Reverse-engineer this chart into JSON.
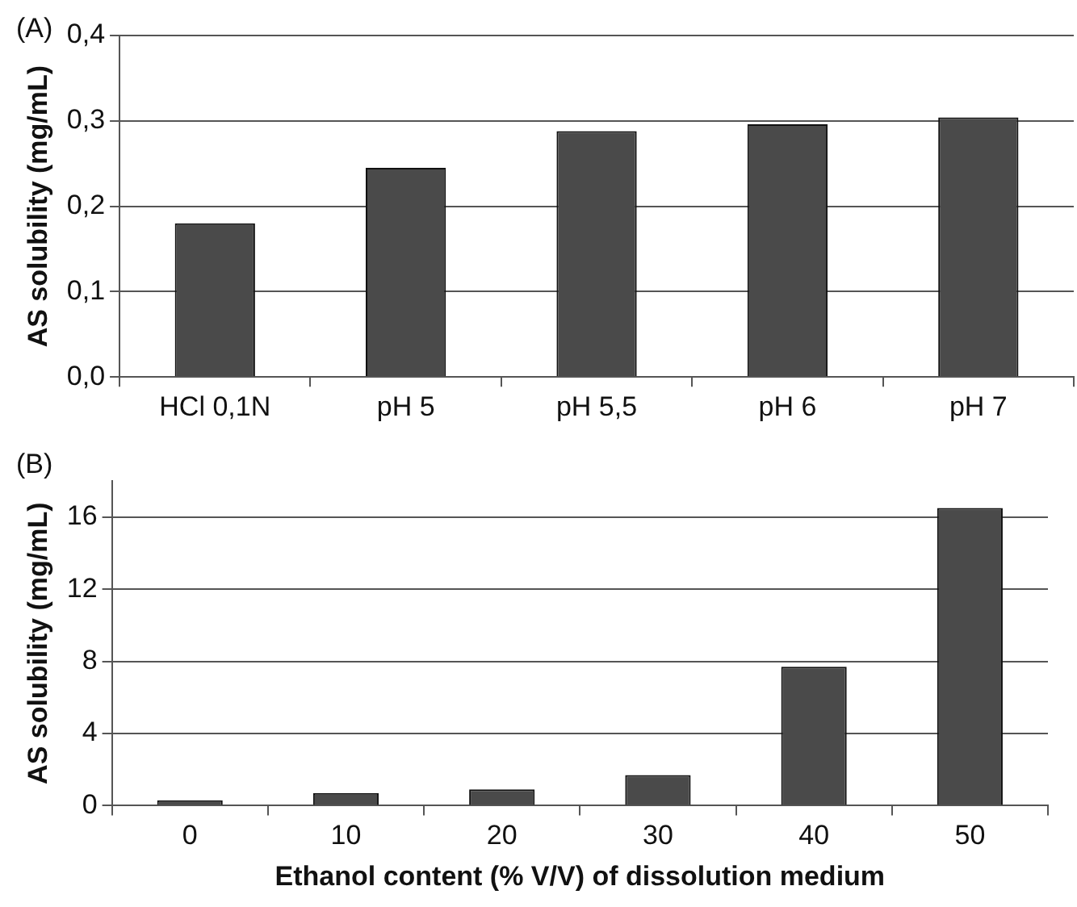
{
  "chart_data": [
    {
      "type": "bar",
      "title": "(A)",
      "ylabel": "AS solubility (mg/mL)",
      "categories": [
        "HCl 0,1N",
        "pH 5",
        "pH 5,5",
        "pH 6",
        "pH 7"
      ],
      "values": [
        0.18,
        0.245,
        0.288,
        0.296,
        0.304
      ],
      "color": "#4a4a4a",
      "ylim": [
        0,
        0.4
      ],
      "yticks": [
        {
          "value": 0,
          "label": "0,0"
        },
        {
          "value": 0.1,
          "label": "0,1"
        },
        {
          "value": 0.2,
          "label": "0,2"
        },
        {
          "value": 0.3,
          "label": "0,3"
        },
        {
          "value": 0.4,
          "label": "0,4"
        }
      ],
      "grid": "y",
      "legend": false
    },
    {
      "type": "bar",
      "title": "(B)",
      "ylabel": "AS solubility (mg/mL)",
      "xlabel": "Ethanol content (% V/V) of dissolution medium",
      "categories": [
        "0",
        "10",
        "20",
        "30",
        "40",
        "50"
      ],
      "values": [
        0.3,
        0.7,
        0.9,
        1.7,
        7.7,
        16.5
      ],
      "color": "#4a4a4a",
      "ylim": [
        0,
        18
      ],
      "yticks": [
        0,
        4,
        8,
        12,
        16
      ],
      "grid": "y",
      "legend": false
    }
  ]
}
